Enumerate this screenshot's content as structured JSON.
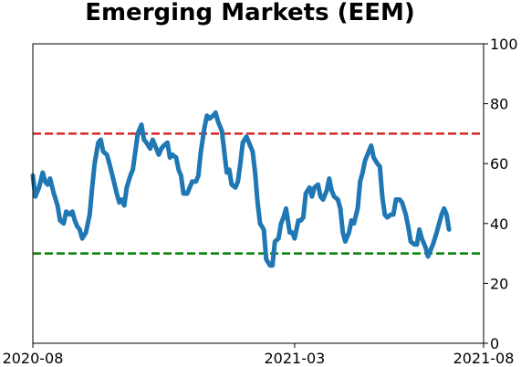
{
  "chart_data": {
    "type": "line",
    "title": "Emerging Markets (EEM)",
    "xlabel": "",
    "ylabel": "",
    "x_ticks": [
      "2020-08",
      "2021-03",
      "2021-08"
    ],
    "x_range": [
      "2020-08-01",
      "2021-08-01"
    ],
    "ylim": [
      0,
      100
    ],
    "y_ticks": [
      0,
      20,
      40,
      60,
      80,
      100
    ],
    "y_axis_side": "right",
    "grid": false,
    "legend": "none",
    "reference_lines": [
      {
        "value": 70,
        "color": "#d62728",
        "style": "dashed"
      },
      {
        "value": 30,
        "color": "#008000",
        "style": "dashed"
      }
    ],
    "series": [
      {
        "color": "#1f77b4",
        "points": [
          [
            "2020-08-01",
            56
          ],
          [
            "2020-08-03",
            49
          ],
          [
            "2020-08-06",
            52
          ],
          [
            "2020-08-09",
            57
          ],
          [
            "2020-08-11",
            54
          ],
          [
            "2020-08-13",
            53
          ],
          [
            "2020-08-15",
            55
          ],
          [
            "2020-08-18",
            50
          ],
          [
            "2020-08-21",
            46
          ],
          [
            "2020-08-23",
            41
          ],
          [
            "2020-08-26",
            40
          ],
          [
            "2020-08-28",
            44
          ],
          [
            "2020-08-31",
            43
          ],
          [
            "2020-09-02",
            44
          ],
          [
            "2020-09-04",
            41
          ],
          [
            "2020-09-06",
            39
          ],
          [
            "2020-09-08",
            38
          ],
          [
            "2020-09-10",
            35
          ],
          [
            "2020-09-13",
            37
          ],
          [
            "2020-09-16",
            43
          ],
          [
            "2020-09-18",
            52
          ],
          [
            "2020-09-20",
            60
          ],
          [
            "2020-09-23",
            67
          ],
          [
            "2020-09-25",
            68
          ],
          [
            "2020-09-27",
            64
          ],
          [
            "2020-09-30",
            63
          ],
          [
            "2020-10-02",
            60
          ],
          [
            "2020-10-05",
            55
          ],
          [
            "2020-10-08",
            50
          ],
          [
            "2020-10-10",
            47
          ],
          [
            "2020-10-12",
            48
          ],
          [
            "2020-10-14",
            46
          ],
          [
            "2020-10-16",
            52
          ],
          [
            "2020-10-19",
            56
          ],
          [
            "2020-10-21",
            58
          ],
          [
            "2020-10-23",
            64
          ],
          [
            "2020-10-25",
            70
          ],
          [
            "2020-10-28",
            73
          ],
          [
            "2020-10-30",
            68
          ],
          [
            "2020-11-01",
            67
          ],
          [
            "2020-11-04",
            65
          ],
          [
            "2020-11-06",
            68
          ],
          [
            "2020-11-08",
            66
          ],
          [
            "2020-11-11",
            63
          ],
          [
            "2020-11-13",
            65
          ],
          [
            "2020-11-15",
            66
          ],
          [
            "2020-11-18",
            67
          ],
          [
            "2020-11-20",
            62
          ],
          [
            "2020-11-22",
            63
          ],
          [
            "2020-11-25",
            62
          ],
          [
            "2020-11-27",
            58
          ],
          [
            "2020-11-29",
            56
          ],
          [
            "2020-12-01",
            50
          ],
          [
            "2020-12-04",
            50
          ],
          [
            "2020-12-06",
            52
          ],
          [
            "2020-12-08",
            54
          ],
          [
            "2020-12-11",
            54
          ],
          [
            "2020-12-13",
            56
          ],
          [
            "2020-12-15",
            64
          ],
          [
            "2020-12-18",
            72
          ],
          [
            "2020-12-20",
            76
          ],
          [
            "2020-12-22",
            75
          ],
          [
            "2020-12-25",
            76
          ],
          [
            "2020-12-27",
            77
          ],
          [
            "2020-12-29",
            74
          ],
          [
            "2021-01-01",
            71
          ],
          [
            "2021-01-03",
            64
          ],
          [
            "2021-01-05",
            57
          ],
          [
            "2021-01-07",
            58
          ],
          [
            "2021-01-09",
            53
          ],
          [
            "2021-01-12",
            52
          ],
          [
            "2021-01-14",
            54
          ],
          [
            "2021-01-16",
            60
          ],
          [
            "2021-01-18",
            67
          ],
          [
            "2021-01-21",
            69
          ],
          [
            "2021-01-23",
            67
          ],
          [
            "2021-01-26",
            64
          ],
          [
            "2021-01-28",
            57
          ],
          [
            "2021-01-30",
            47
          ],
          [
            "2021-02-01",
            40
          ],
          [
            "2021-02-04",
            38
          ],
          [
            "2021-02-06",
            28
          ],
          [
            "2021-02-09",
            26
          ],
          [
            "2021-02-11",
            26
          ],
          [
            "2021-02-13",
            34
          ],
          [
            "2021-02-16",
            35
          ],
          [
            "2021-02-18",
            40
          ],
          [
            "2021-02-20",
            42
          ],
          [
            "2021-02-22",
            45
          ],
          [
            "2021-02-25",
            37
          ],
          [
            "2021-02-27",
            37
          ],
          [
            "2021-03-01",
            35
          ],
          [
            "2021-03-04",
            41
          ],
          [
            "2021-03-06",
            41
          ],
          [
            "2021-03-08",
            42
          ],
          [
            "2021-03-10",
            50
          ],
          [
            "2021-03-13",
            52
          ],
          [
            "2021-03-15",
            49
          ],
          [
            "2021-03-17",
            52
          ],
          [
            "2021-03-20",
            53
          ],
          [
            "2021-03-22",
            49
          ],
          [
            "2021-03-24",
            48
          ],
          [
            "2021-03-27",
            51
          ],
          [
            "2021-03-29",
            55
          ],
          [
            "2021-03-31",
            51
          ],
          [
            "2021-04-02",
            49
          ],
          [
            "2021-04-05",
            48
          ],
          [
            "2021-04-07",
            45
          ],
          [
            "2021-04-09",
            37
          ],
          [
            "2021-04-11",
            34
          ],
          [
            "2021-04-14",
            37
          ],
          [
            "2021-04-16",
            41
          ],
          [
            "2021-04-18",
            40
          ],
          [
            "2021-04-21",
            45
          ],
          [
            "2021-04-23",
            54
          ],
          [
            "2021-04-25",
            57
          ],
          [
            "2021-04-27",
            61
          ],
          [
            "2021-04-30",
            64
          ],
          [
            "2021-05-02",
            66
          ],
          [
            "2021-05-04",
            62
          ],
          [
            "2021-05-07",
            60
          ],
          [
            "2021-05-09",
            59
          ],
          [
            "2021-05-11",
            49
          ],
          [
            "2021-05-13",
            43
          ],
          [
            "2021-05-15",
            42
          ],
          [
            "2021-05-18",
            43
          ],
          [
            "2021-05-20",
            43
          ],
          [
            "2021-05-22",
            48
          ],
          [
            "2021-05-25",
            48
          ],
          [
            "2021-05-27",
            47
          ],
          [
            "2021-05-30",
            43
          ],
          [
            "2021-06-01",
            39
          ],
          [
            "2021-06-03",
            34
          ],
          [
            "2021-06-06",
            33
          ],
          [
            "2021-06-08",
            33
          ],
          [
            "2021-06-10",
            38
          ],
          [
            "2021-06-12",
            35
          ],
          [
            "2021-06-15",
            32
          ],
          [
            "2021-06-17",
            29
          ],
          [
            "2021-06-19",
            31
          ],
          [
            "2021-06-21",
            33
          ],
          [
            "2021-06-24",
            37
          ],
          [
            "2021-06-26",
            40
          ],
          [
            "2021-06-28",
            43
          ],
          [
            "2021-06-30",
            45
          ],
          [
            "2021-07-02",
            43
          ],
          [
            "2021-07-04",
            38
          ]
        ]
      }
    ]
  }
}
